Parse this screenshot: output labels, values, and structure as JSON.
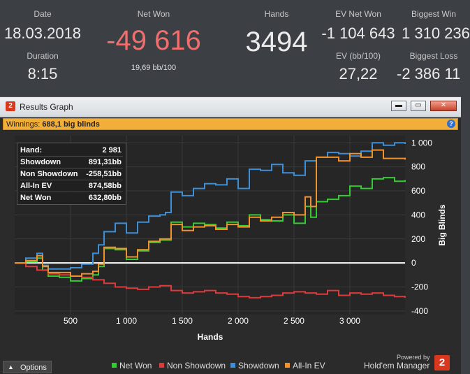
{
  "stats": {
    "date": {
      "label": "Date",
      "value": "18.03.2018"
    },
    "duration": {
      "label": "Duration",
      "value": "8:15"
    },
    "net_won": {
      "label": "Net Won",
      "value": "-49 616",
      "sub": "19,69 bb/100"
    },
    "hands": {
      "label": "Hands",
      "value": "3494"
    },
    "ev_net_won": {
      "label": "EV Net Won",
      "value": "-1 104 643"
    },
    "ev_bb100": {
      "label": "EV (bb/100)",
      "value": "27,22"
    },
    "biggest_win": {
      "label": "Biggest Win",
      "value": "1 310 236"
    },
    "biggest_loss": {
      "label": "Biggest Loss",
      "value": "-2 386 11"
    }
  },
  "window": {
    "title": "Results Graph",
    "buttons": {
      "minimize": "▬",
      "maximize": "▭",
      "close": "✕"
    },
    "winnings_label": "Winnings:",
    "winnings_value": "688,1 big blinds",
    "help": "?"
  },
  "tooltip": [
    {
      "label": "Hand:",
      "value": "2 981"
    },
    {
      "label": "Showdown",
      "value": "891,31bb"
    },
    {
      "label": "Non Showdown",
      "value": "-258,51bb"
    },
    {
      "label": "All-In EV",
      "value": "874,58bb"
    },
    {
      "label": "Net Won",
      "value": "632,80bb"
    }
  ],
  "footer": {
    "options": "Options",
    "powered_by": "Powered by",
    "brand": "Hold'em Manager",
    "brand_logo": "2"
  },
  "colors": {
    "net_won": "#33cc33",
    "non_showdown": "#dd3b3b",
    "showdown": "#3d8fd8",
    "all_in_ev": "#f0922e"
  },
  "chart_data": {
    "type": "line",
    "xlabel": "Hands",
    "ylabel": "Big Blinds",
    "xlim": [
      0,
      3494
    ],
    "ylim": [
      -400,
      1000
    ],
    "xticks": [
      {
        "v": 500,
        "label": "500"
      },
      {
        "v": 1000,
        "label": "1 000"
      },
      {
        "v": 1500,
        "label": "1 500"
      },
      {
        "v": 2000,
        "label": "2 000"
      },
      {
        "v": 2500,
        "label": "2 500"
      },
      {
        "v": 3000,
        "label": "3 000"
      }
    ],
    "yticks": [
      {
        "v": 1000,
        "label": "1 000"
      },
      {
        "v": 800,
        "label": "800"
      },
      {
        "v": 600,
        "label": "600"
      },
      {
        "v": 400,
        "label": "400"
      },
      {
        "v": 200,
        "label": "200"
      },
      {
        "v": 0,
        "label": "0"
      },
      {
        "v": -200,
        "label": "-200"
      },
      {
        "v": -400,
        "label": "-400"
      }
    ],
    "grid": true,
    "legend_position": "bottom",
    "series": [
      {
        "name": "Net Won",
        "color": "#33cc33",
        "x": [
          0,
          100,
          200,
          250,
          300,
          400,
          500,
          600,
          700,
          750,
          800,
          900,
          1000,
          1100,
          1200,
          1300,
          1400,
          1500,
          1600,
          1700,
          1800,
          1900,
          2000,
          2100,
          2200,
          2300,
          2400,
          2500,
          2600,
          2650,
          2700,
          2800,
          2900,
          3000,
          3100,
          3200,
          3300,
          3400,
          3494
        ],
        "y": [
          0,
          10,
          40,
          -60,
          -110,
          -120,
          -150,
          -130,
          -100,
          -30,
          120,
          110,
          30,
          100,
          170,
          190,
          340,
          300,
          330,
          320,
          290,
          340,
          310,
          400,
          360,
          350,
          400,
          330,
          470,
          380,
          510,
          530,
          560,
          640,
          620,
          700,
          710,
          680,
          690
        ]
      },
      {
        "name": "Non Showdown",
        "color": "#dd3b3b",
        "x": [
          0,
          100,
          200,
          300,
          400,
          500,
          600,
          700,
          800,
          900,
          1000,
          1100,
          1200,
          1300,
          1400,
          1500,
          1600,
          1700,
          1800,
          1900,
          2000,
          2100,
          2200,
          2300,
          2400,
          2500,
          2600,
          2700,
          2800,
          2900,
          3000,
          3100,
          3200,
          3300,
          3400,
          3494
        ],
        "y": [
          0,
          -30,
          -60,
          -90,
          -100,
          -110,
          -120,
          -140,
          -170,
          -200,
          -210,
          -220,
          -200,
          -190,
          -230,
          -250,
          -240,
          -230,
          -250,
          -260,
          -280,
          -290,
          -280,
          -270,
          -250,
          -240,
          -250,
          -260,
          -230,
          -270,
          -250,
          -260,
          -250,
          -270,
          -280,
          -290
        ]
      },
      {
        "name": "Showdown",
        "color": "#3d8fd8",
        "x": [
          0,
          100,
          200,
          250,
          300,
          400,
          500,
          600,
          700,
          750,
          800,
          900,
          1000,
          1100,
          1200,
          1300,
          1350,
          1400,
          1500,
          1600,
          1700,
          1800,
          1900,
          2000,
          2100,
          2200,
          2300,
          2400,
          2500,
          2600,
          2700,
          2800,
          2900,
          3000,
          3100,
          3200,
          3300,
          3400,
          3494
        ],
        "y": [
          0,
          40,
          80,
          -20,
          -50,
          -50,
          -40,
          -10,
          80,
          150,
          260,
          330,
          250,
          340,
          390,
          400,
          420,
          590,
          560,
          620,
          660,
          650,
          700,
          620,
          780,
          770,
          820,
          750,
          730,
          850,
          880,
          920,
          910,
          890,
          930,
          1000,
          980,
          1000,
          990
        ]
      },
      {
        "name": "All-In EV",
        "color": "#f0922e",
        "x": [
          0,
          100,
          200,
          250,
          300,
          400,
          500,
          600,
          700,
          750,
          800,
          900,
          1000,
          1100,
          1200,
          1300,
          1400,
          1500,
          1600,
          1700,
          1800,
          1900,
          2000,
          2100,
          2200,
          2300,
          2400,
          2500,
          2600,
          2650,
          2700,
          2800,
          2900,
          3000,
          3100,
          3200,
          3300,
          3400,
          3494
        ],
        "y": [
          0,
          20,
          60,
          -30,
          -80,
          -80,
          -110,
          -90,
          -70,
          -10,
          130,
          120,
          50,
          110,
          180,
          200,
          320,
          270,
          300,
          310,
          280,
          320,
          300,
          380,
          350,
          380,
          420,
          400,
          550,
          470,
          880,
          880,
          850,
          910,
          880,
          940,
          870,
          870,
          860
        ]
      }
    ]
  }
}
